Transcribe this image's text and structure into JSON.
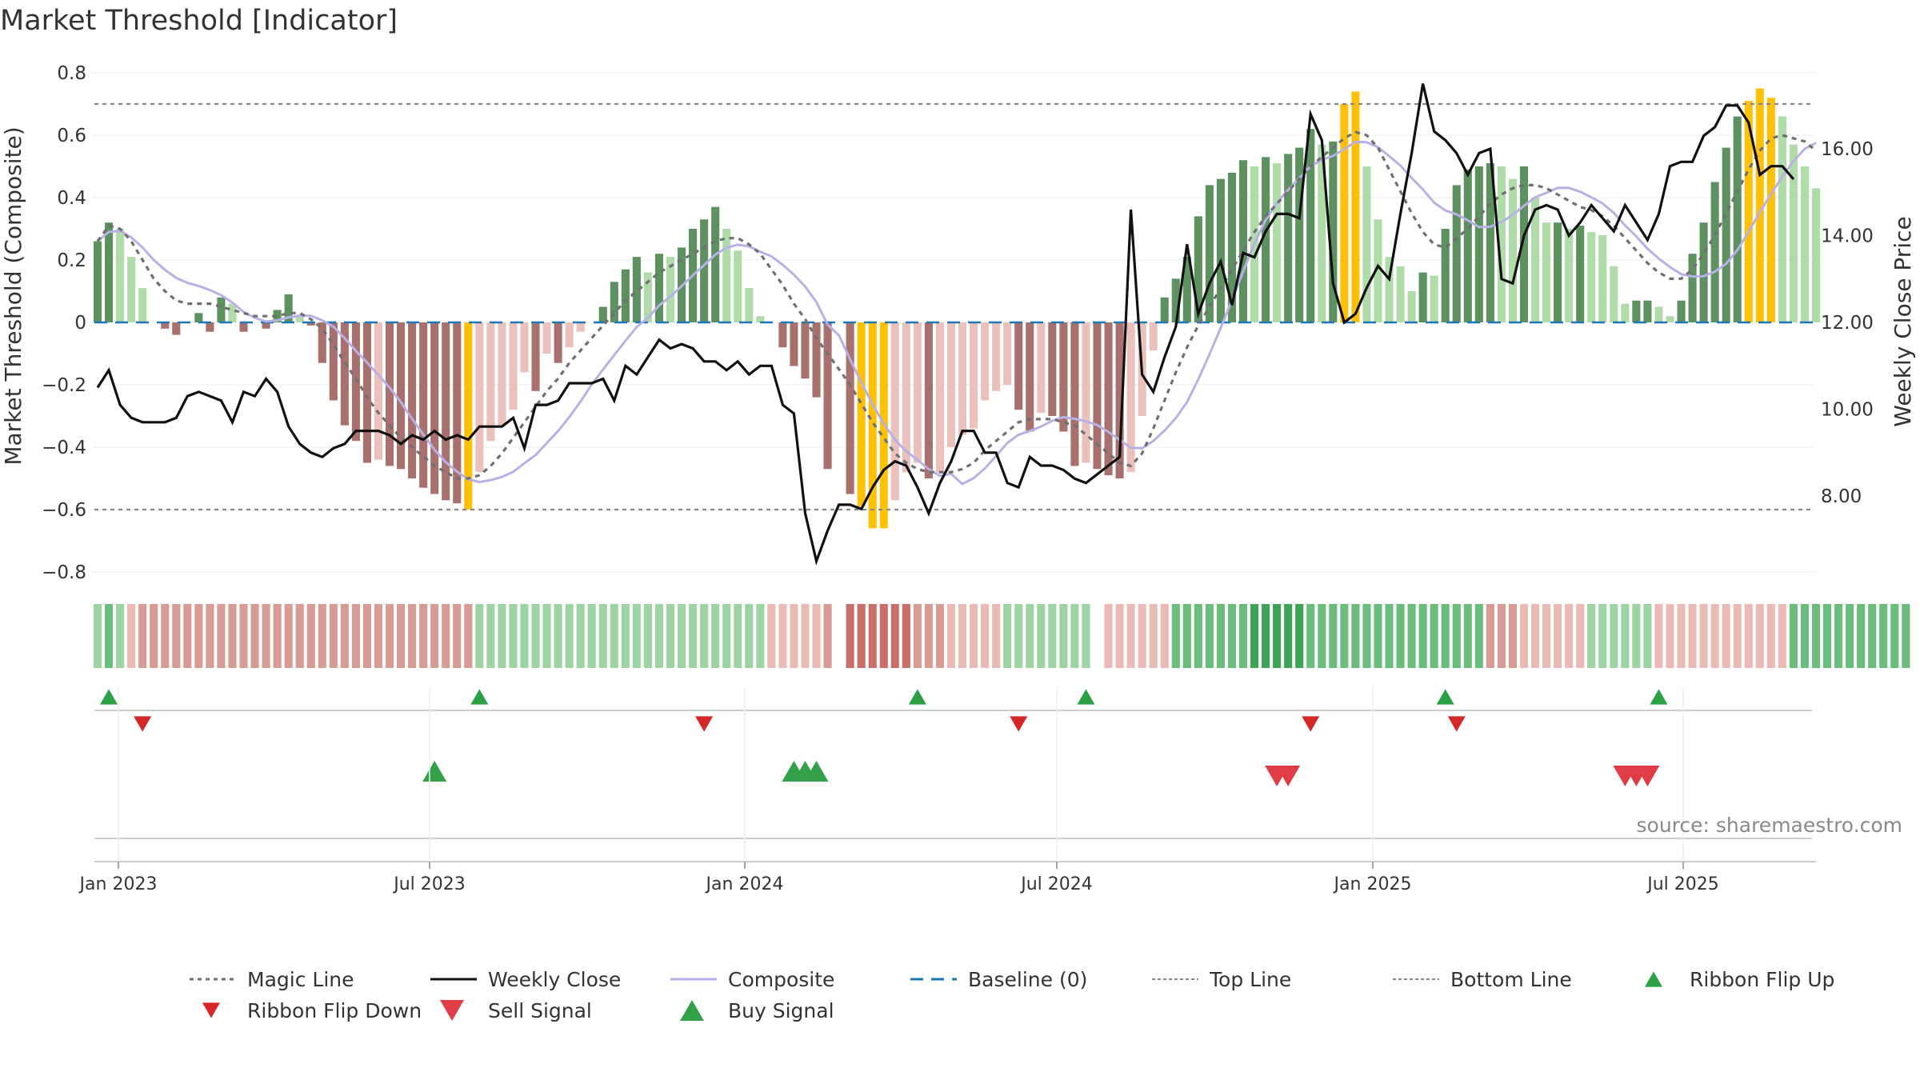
{
  "title": "Market Threshold [Indicator]",
  "source": "source: sharemaestro.com",
  "colors": {
    "bar_pos_dark": "#5e9160",
    "bar_pos_light": "#b0dcaa",
    "bar_neg_dark": "#a8716e",
    "bar_neg_light": "#ebc1bc",
    "bar_extreme": "#ffc107",
    "magic": "#707070",
    "close": "#111111",
    "composite": "#b9b1e6",
    "baseline": "#1f77b4",
    "threshold": "#888888",
    "flip_up": "#2ca045",
    "flip_down": "#d62728",
    "sell": "#e03c46",
    "buy": "#33a04a"
  },
  "chart_data": {
    "type": "bar",
    "x_axis": {
      "tick_labels": [
        "Jan 2023",
        "Jul 2023",
        "Jan 2024",
        "Jul 2024",
        "Jan 2025",
        "Jul 2025"
      ]
    },
    "y_axis": {
      "label": "Market Threshold (Composite)",
      "ylim": [
        -0.85,
        0.8
      ],
      "tick_labels": [
        "0.8",
        "0.6",
        "0.4",
        "0.2",
        "0",
        "−0.2",
        "−0.4",
        "−0.6",
        "−0.8"
      ]
    },
    "y2_axis": {
      "label": "Weekly Close Price",
      "tick_labels": [
        "16.00",
        "14.00",
        "12.00",
        "10.00",
        "8.00"
      ]
    },
    "top_line": 0.7,
    "bottom_line": -0.6,
    "composite_bars": [
      0.26,
      0.32,
      0.3,
      0.21,
      0.11,
      0,
      -0.02,
      -0.04,
      0,
      0.03,
      -0.03,
      0.08,
      0.06,
      -0.03,
      0,
      -0.02,
      0.04,
      0.09,
      0.02,
      -0.01,
      -0.13,
      -0.25,
      -0.33,
      -0.38,
      -0.45,
      -0.44,
      -0.46,
      -0.47,
      -0.5,
      -0.53,
      -0.55,
      -0.57,
      -0.58,
      -0.6,
      -0.48,
      -0.38,
      -0.33,
      -0.28,
      -0.16,
      -0.22,
      -0.1,
      -0.13,
      -0.08,
      -0.03,
      0,
      0.05,
      0.13,
      0.17,
      0.21,
      0.16,
      0.22,
      0.21,
      0.24,
      0.3,
      0.33,
      0.37,
      0.3,
      0.23,
      0.11,
      0.02,
      0,
      -0.08,
      -0.14,
      -0.18,
      -0.24,
      -0.47,
      0,
      -0.55,
      -0.59,
      -0.66,
      -0.66,
      -0.57,
      -0.48,
      -0.45,
      -0.5,
      -0.48,
      -0.4,
      -0.36,
      -0.34,
      -0.25,
      -0.22,
      -0.2,
      -0.28,
      -0.35,
      -0.29,
      -0.3,
      -0.35,
      -0.46,
      -0.45,
      -0.47,
      -0.49,
      -0.5,
      -0.48,
      -0.3,
      -0.09,
      0.08,
      0.14,
      0.21,
      0.34,
      0.44,
      0.46,
      0.48,
      0.52,
      0.5,
      0.53,
      0.51,
      0.54,
      0.56,
      0.62,
      0.57,
      0.58,
      0.7,
      0.74,
      0.5,
      0.33,
      0.21,
      0.18,
      0.1,
      0.16,
      0.15,
      0.3,
      0.44,
      0.49,
      0.5,
      0.51,
      0.5,
      0.46,
      0.5,
      0.4,
      0.32,
      0.32,
      0.3,
      0.31,
      0.29,
      0.28,
      0.18,
      0.06,
      0.07,
      0.07,
      0.05,
      0.02,
      0.07,
      0.22,
      0.32,
      0.45,
      0.56,
      0.66,
      0.71,
      0.75,
      0.72,
      0.66,
      0.57,
      0.5,
      0.43
    ],
    "magic_line": [
      0.26,
      0.31,
      0.3,
      0.26,
      0.2,
      0.14,
      0.1,
      0.07,
      0.06,
      0.06,
      0.06,
      0.05,
      0.04,
      0.03,
      0.02,
      0.02,
      0.02,
      0.03,
      0.03,
      0.01,
      -0.02,
      -0.07,
      -0.13,
      -0.18,
      -0.24,
      -0.29,
      -0.33,
      -0.37,
      -0.4,
      -0.43,
      -0.46,
      -0.48,
      -0.5,
      -0.5,
      -0.49,
      -0.46,
      -0.42,
      -0.37,
      -0.32,
      -0.27,
      -0.22,
      -0.18,
      -0.13,
      -0.09,
      -0.05,
      -0.01,
      0.03,
      0.07,
      0.1,
      0.13,
      0.16,
      0.18,
      0.2,
      0.22,
      0.24,
      0.26,
      0.27,
      0.27,
      0.25,
      0.22,
      0.17,
      0.12,
      0.06,
      0.01,
      -0.05,
      -0.1,
      -0.15,
      -0.2,
      -0.26,
      -0.32,
      -0.37,
      -0.42,
      -0.45,
      -0.47,
      -0.48,
      -0.48,
      -0.48,
      -0.47,
      -0.45,
      -0.41,
      -0.38,
      -0.35,
      -0.32,
      -0.31,
      -0.31,
      -0.31,
      -0.32,
      -0.33,
      -0.36,
      -0.39,
      -0.42,
      -0.45,
      -0.46,
      -0.42,
      -0.34,
      -0.25,
      -0.16,
      -0.08,
      -0.01,
      0.05,
      0.11,
      0.17,
      0.23,
      0.29,
      0.34,
      0.38,
      0.42,
      0.46,
      0.5,
      0.53,
      0.56,
      0.59,
      0.61,
      0.6,
      0.56,
      0.49,
      0.42,
      0.35,
      0.29,
      0.25,
      0.24,
      0.27,
      0.3,
      0.34,
      0.38,
      0.41,
      0.43,
      0.44,
      0.44,
      0.43,
      0.41,
      0.39,
      0.37,
      0.36,
      0.34,
      0.31,
      0.27,
      0.23,
      0.19,
      0.16,
      0.14,
      0.14,
      0.17,
      0.22,
      0.28,
      0.35,
      0.42,
      0.49,
      0.55,
      0.59,
      0.6,
      0.59,
      0.58,
      0.55
    ],
    "weekly_close": [
      10.5,
      10.9,
      10.1,
      9.8,
      9.7,
      9.7,
      9.7,
      9.8,
      10.3,
      10.4,
      10.3,
      10.2,
      9.7,
      10.4,
      10.3,
      10.7,
      10.4,
      9.6,
      9.2,
      9.0,
      8.9,
      9.1,
      9.2,
      9.5,
      9.5,
      9.5,
      9.4,
      9.2,
      9.4,
      9.3,
      9.5,
      9.3,
      9.4,
      9.3,
      9.6,
      9.6,
      9.6,
      9.8,
      9.1,
      10.1,
      10.1,
      10.2,
      10.6,
      10.6,
      10.6,
      10.7,
      10.2,
      11.0,
      10.8,
      11.2,
      11.6,
      11.4,
      11.5,
      11.4,
      11.1,
      11.1,
      10.9,
      11.1,
      10.8,
      11.0,
      11.0,
      10.1,
      9.9,
      7.6,
      6.5,
      7.2,
      7.8,
      7.8,
      7.7,
      8.2,
      8.6,
      8.8,
      8.7,
      8.2,
      7.6,
      8.3,
      8.8,
      9.5,
      9.5,
      9.0,
      9.0,
      8.3,
      8.2,
      8.9,
      8.7,
      8.7,
      8.6,
      8.4,
      8.3,
      8.5,
      8.7,
      8.9,
      14.6,
      10.8,
      10.4,
      11.2,
      11.9,
      13.8,
      12.2,
      12.9,
      13.4,
      12.4,
      13.6,
      13.5,
      14.1,
      14.5,
      14.5,
      14.4,
      16.8,
      16.2,
      12.9,
      12.0,
      12.2,
      12.8,
      13.3,
      13.0,
      14.5,
      15.9,
      17.5,
      16.4,
      16.2,
      15.9,
      15.4,
      15.9,
      16.0,
      13.0,
      12.9,
      14.0,
      14.6,
      14.7,
      14.6,
      14.0,
      14.3,
      14.7,
      14.4,
      14.1,
      14.7,
      14.3,
      13.9,
      14.5,
      15.6,
      15.7,
      15.7,
      16.3,
      16.5,
      17.0,
      17.0,
      16.6,
      15.4,
      15.6,
      15.6,
      15.3
    ],
    "ribbon_strength": [
      1,
      2,
      1,
      -1,
      -2,
      -2,
      -2,
      -2,
      -2,
      -2,
      -2,
      -2,
      -2,
      -2,
      -2,
      -2,
      -2,
      -2,
      -2,
      -2,
      -2,
      -2,
      -2,
      -2,
      -2,
      -2,
      -2,
      -2,
      -2,
      -2,
      -2,
      -2,
      -2,
      -2,
      1,
      1,
      1,
      1,
      1,
      1,
      1,
      1,
      1,
      1,
      1,
      1,
      1,
      1,
      1,
      1,
      1,
      1,
      1,
      1,
      1,
      1,
      1,
      1,
      1,
      1,
      -1,
      -1,
      -1,
      -1,
      -1,
      -2,
      0,
      -3,
      -3,
      -3,
      -3,
      -3,
      -3,
      -2,
      -2,
      -2,
      -1,
      -1,
      -1,
      -1,
      -1,
      1,
      1,
      1,
      1,
      1,
      1,
      1,
      1,
      0,
      -1,
      -1,
      -1,
      -1,
      -1,
      -1,
      2,
      2,
      2,
      2,
      2,
      2,
      2,
      3,
      3,
      3,
      3,
      3,
      2,
      2,
      2,
      2,
      2,
      2,
      2,
      2,
      2,
      2,
      2,
      2,
      2,
      2,
      2,
      2,
      -2,
      -2,
      -2,
      -1,
      -1,
      -1,
      -1,
      -1,
      -1,
      1,
      1,
      1,
      1,
      1,
      1,
      -1,
      -1,
      -1,
      -1,
      -1,
      -1,
      -1,
      -1,
      -1,
      -1,
      -1,
      -1,
      2,
      2,
      2,
      2,
      2,
      2,
      2,
      2,
      2,
      2,
      2
    ],
    "ribbon_flip_up_idx": [
      1,
      34,
      73,
      88,
      120,
      139
    ],
    "ribbon_flip_down_idx": [
      4,
      54,
      82,
      108,
      121
    ],
    "buy_signal_idx": [
      30,
      62,
      63,
      64
    ],
    "sell_signal_idx": [
      105,
      106,
      136,
      137,
      138
    ],
    "series_names": [
      "Magic Line",
      "Weekly Close",
      "Composite",
      "Baseline (0)",
      "Top Line",
      "Bottom Line",
      "Ribbon Flip Up",
      "Ribbon Flip Down",
      "Sell Signal",
      "Buy Signal"
    ]
  }
}
